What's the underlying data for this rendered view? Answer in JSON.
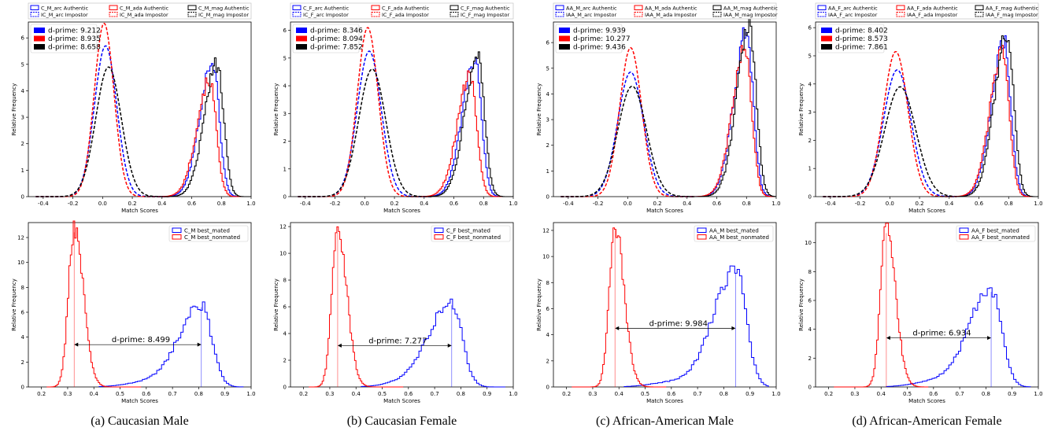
{
  "captions": [
    "(a) Caucasian Male",
    "(b) Caucasian Female",
    "(c) African-American Male",
    "(d) African-American Female"
  ],
  "colors": {
    "arc": "#0000ff",
    "ada": "#ff0000",
    "mag": "#000000",
    "mated": "#0000ff",
    "nonmated": "#ff0000"
  },
  "chart_data": [
    {
      "type": "line",
      "panel": "a-top",
      "xlabel": "Match Scores",
      "ylabel": "Relative Frequency",
      "xlim": [
        -0.5,
        1.0
      ],
      "ylim": [
        0,
        6.6
      ],
      "xticks": [
        "-0.4",
        "-0.2",
        "0.0",
        "0.2",
        "0.4",
        "0.6",
        "0.8",
        "1.0"
      ],
      "yticks": [
        "0",
        "1",
        "2",
        "3",
        "4",
        "5",
        "6"
      ],
      "legend": [
        "C_M_arc Authentic",
        "C_M_ada Authentic",
        "C_M_mag Authentic",
        "IC_M_arc Impostor",
        "IC_M_ada Impostor",
        "IC_M_mag Impostor"
      ],
      "dprime_labels": [
        "d-prime: 9.212",
        "d-prime: 8.935",
        "d-prime: 8.658"
      ],
      "series": [
        {
          "name": "C_M_arc Impostor",
          "kind": "impostor",
          "model": "arc",
          "mean": 0.02,
          "peak": 5.7
        },
        {
          "name": "C_M_ada Impostor",
          "kind": "impostor",
          "model": "ada",
          "mean": 0.01,
          "peak": 6.55
        },
        {
          "name": "C_M_mag Impostor",
          "kind": "impostor",
          "model": "mag",
          "mean": 0.04,
          "peak": 4.9
        },
        {
          "name": "C_M_arc Authentic",
          "kind": "authentic",
          "model": "arc",
          "mean": 0.74,
          "peak": 5.1
        },
        {
          "name": "C_M_ada Authentic",
          "kind": "authentic",
          "model": "ada",
          "mean": 0.72,
          "peak": 4.4
        },
        {
          "name": "C_M_mag Authentic",
          "kind": "authentic",
          "model": "mag",
          "mean": 0.77,
          "peak": 5.0
        }
      ]
    },
    {
      "type": "line",
      "panel": "b-top",
      "xlabel": "Match Scores",
      "ylabel": "Relative Frequency",
      "xlim": [
        -0.5,
        1.0
      ],
      "ylim": [
        0,
        6.3
      ],
      "xticks": [
        "-0.4",
        "-0.2",
        "0.0",
        "0.2",
        "0.4",
        "0.6",
        "0.8",
        "1.0"
      ],
      "yticks": [
        "0",
        "1",
        "2",
        "3",
        "4",
        "5",
        "6"
      ],
      "legend": [
        "C_F_arc Authentic",
        "C_F_ada Authentic",
        "C_F_mag Authentic",
        "IC_F_arc Impostor",
        "IC_F_ada Impostor",
        "IC_F_mag Impostor"
      ],
      "dprime_labels": [
        "d-prime: 8.346",
        "d-prime: 8.094",
        "d-prime: 7.852"
      ],
      "series": [
        {
          "name": "C_F_arc Impostor",
          "kind": "impostor",
          "model": "arc",
          "mean": 0.03,
          "peak": 5.25
        },
        {
          "name": "C_F_ada Impostor",
          "kind": "impostor",
          "model": "ada",
          "mean": 0.02,
          "peak": 6.1
        },
        {
          "name": "C_F_mag Impostor",
          "kind": "impostor",
          "model": "mag",
          "mean": 0.05,
          "peak": 4.6
        },
        {
          "name": "C_F_arc Authentic",
          "kind": "authentic",
          "model": "arc",
          "mean": 0.74,
          "peak": 4.9
        },
        {
          "name": "C_F_ada Authentic",
          "kind": "authentic",
          "model": "ada",
          "mean": 0.71,
          "peak": 4.4
        },
        {
          "name": "C_F_mag Authentic",
          "kind": "authentic",
          "model": "mag",
          "mean": 0.76,
          "peak": 5.2
        }
      ]
    },
    {
      "type": "line",
      "panel": "c-top",
      "xlabel": "Match Scores",
      "ylabel": "Relative Frequency",
      "xlim": [
        -0.5,
        1.0
      ],
      "ylim": [
        0,
        6.8
      ],
      "xticks": [
        "-0.4",
        "-0.2",
        "0.0",
        "0.2",
        "0.4",
        "0.6",
        "0.8",
        "1.0"
      ],
      "yticks": [
        "0",
        "1",
        "2",
        "3",
        "4",
        "5",
        "6"
      ],
      "legend": [
        "AA_M_arc Authentic",
        "AA_M_ada Authentic",
        "AA_M_mag Authentic",
        "IAA_M_arc Impostor",
        "IAA_M_ada Impostor",
        "IAA_M_mag Impostor"
      ],
      "dprime_labels": [
        "d-prime: 9.939",
        "d-prime: 10.277",
        "d-prime: 9.436"
      ],
      "series": [
        {
          "name": "AA_M_arc Impostor",
          "kind": "impostor",
          "model": "arc",
          "mean": 0.02,
          "peak": 4.85
        },
        {
          "name": "AA_M_ada Impostor",
          "kind": "impostor",
          "model": "ada",
          "mean": 0.02,
          "peak": 5.8
        },
        {
          "name": "AA_M_mag Impostor",
          "kind": "impostor",
          "model": "mag",
          "mean": 0.03,
          "peak": 4.3
        },
        {
          "name": "AA_M_arc Authentic",
          "kind": "authentic",
          "model": "arc",
          "mean": 0.8,
          "peak": 6.4
        },
        {
          "name": "AA_M_ada Authentic",
          "kind": "authentic",
          "model": "ada",
          "mean": 0.79,
          "peak": 5.8
        },
        {
          "name": "AA_M_mag Authentic",
          "kind": "authentic",
          "model": "mag",
          "mean": 0.82,
          "peak": 6.6
        }
      ]
    },
    {
      "type": "line",
      "panel": "d-top",
      "xlabel": "Match Scores",
      "ylabel": "Relative Frequency",
      "xlim": [
        -0.5,
        1.0
      ],
      "ylim": [
        0,
        6.2
      ],
      "xticks": [
        "-0.4",
        "-0.2",
        "0.0",
        "0.2",
        "0.4",
        "0.6",
        "0.8",
        "1.0"
      ],
      "yticks": [
        "0",
        "1",
        "2",
        "3",
        "4",
        "5",
        "6"
      ],
      "legend": [
        "AA_F_arc Authentic",
        "AA_F_ada Authentic",
        "AA_F_mag Authentic",
        "IAA_F_arc Impostor",
        "IAA_F_ada Impostor",
        "IAA_F_mag Impostor"
      ],
      "dprime_labels": [
        "d-prime: 8.402",
        "d-prime: 8.573",
        "d-prime: 7.861"
      ],
      "series": [
        {
          "name": "AA_F_arc Impostor",
          "kind": "impostor",
          "model": "arc",
          "mean": 0.05,
          "peak": 4.5
        },
        {
          "name": "AA_F_ada Impostor",
          "kind": "impostor",
          "model": "ada",
          "mean": 0.04,
          "peak": 5.15
        },
        {
          "name": "AA_F_mag Impostor",
          "kind": "impostor",
          "model": "mag",
          "mean": 0.07,
          "peak": 3.9
        },
        {
          "name": "AA_F_arc Authentic",
          "kind": "authentic",
          "model": "arc",
          "mean": 0.77,
          "peak": 5.5
        },
        {
          "name": "AA_F_ada Authentic",
          "kind": "authentic",
          "model": "ada",
          "mean": 0.76,
          "peak": 5.2
        },
        {
          "name": "AA_F_mag Authentic",
          "kind": "authentic",
          "model": "mag",
          "mean": 0.79,
          "peak": 5.8
        }
      ]
    },
    {
      "type": "line",
      "panel": "a-bottom",
      "xlabel": "Match Scores",
      "ylabel": "Relative Frequency",
      "xlim": [
        0.15,
        1.0
      ],
      "ylim": [
        0,
        13.2
      ],
      "xticks": [
        "0.2",
        "0.3",
        "0.4",
        "0.5",
        "0.6",
        "0.7",
        "0.8",
        "0.9",
        "1.0"
      ],
      "yticks": [
        "0",
        "2",
        "4",
        "6",
        "8",
        "10",
        "12"
      ],
      "legend": [
        "C_M best_mated",
        "C_M best_nonmated"
      ],
      "dprime_label": "d-prime: 8.499",
      "mated_mean": 0.81,
      "nonmated_mean": 0.325,
      "arrow_y": 3.4,
      "series": [
        {
          "name": "C_M best_mated",
          "kind": "mated",
          "mean": 0.81,
          "peak": 6.6
        },
        {
          "name": "C_M best_nonmated",
          "kind": "nonmated",
          "mean": 0.325,
          "peak": 12.8
        }
      ]
    },
    {
      "type": "line",
      "panel": "b-bottom",
      "xlabel": "Match Scores",
      "ylabel": "Relative Frequency",
      "xlim": [
        0.15,
        1.0
      ],
      "ylim": [
        0,
        12.3
      ],
      "xticks": [
        "0.2",
        "0.3",
        "0.4",
        "0.5",
        "0.6",
        "0.7",
        "0.8",
        "0.9",
        "1.0"
      ],
      "yticks": [
        "0",
        "2",
        "4",
        "6",
        "8",
        "10",
        "12"
      ],
      "legend": [
        "C_F best_mated",
        "C_F best_nonmated"
      ],
      "dprime_label": "d-prime: 7.277",
      "mated_mean": 0.765,
      "nonmated_mean": 0.33,
      "arrow_y": 3.1,
      "series": [
        {
          "name": "C_F best_mated",
          "kind": "mated",
          "mean": 0.765,
          "peak": 6.3
        },
        {
          "name": "C_F best_nonmated",
          "kind": "nonmated",
          "mean": 0.33,
          "peak": 11.9
        }
      ]
    },
    {
      "type": "line",
      "panel": "c-bottom",
      "xlabel": "Match Scores",
      "ylabel": "Relative Frequency",
      "xlim": [
        0.15,
        1.0
      ],
      "ylim": [
        0,
        12.6
      ],
      "xticks": [
        "0.2",
        "0.3",
        "0.4",
        "0.5",
        "0.6",
        "0.7",
        "0.8",
        "0.9",
        "1.0"
      ],
      "yticks": [
        "0",
        "2",
        "4",
        "6",
        "8",
        "10",
        "12"
      ],
      "legend": [
        "AA_M best_mated",
        "AA_M best_nonmated"
      ],
      "dprime_label": "d-prime: 9.984",
      "mated_mean": 0.845,
      "nonmated_mean": 0.385,
      "arrow_y": 4.5,
      "series": [
        {
          "name": "AA_M best_mated",
          "kind": "mated",
          "mean": 0.845,
          "peak": 9.0
        },
        {
          "name": "AA_M best_nonmated",
          "kind": "nonmated",
          "mean": 0.385,
          "peak": 12.4
        }
      ]
    },
    {
      "type": "line",
      "panel": "d-bottom",
      "xlabel": "Match Scores",
      "ylabel": "Relative Frequency",
      "xlim": [
        0.15,
        1.0
      ],
      "ylim": [
        0,
        11.4
      ],
      "xticks": [
        "0.2",
        "0.3",
        "0.4",
        "0.5",
        "0.6",
        "0.7",
        "0.8",
        "0.9",
        "1.0"
      ],
      "yticks": [
        "0",
        "2",
        "4",
        "6",
        "8",
        "10"
      ],
      "legend": [
        "AA_F best_mated",
        "AA_F best_nonmated"
      ],
      "dprime_label": "d-prime: 6.934",
      "mated_mean": 0.82,
      "nonmated_mean": 0.42,
      "arrow_y": 3.4,
      "series": [
        {
          "name": "AA_F best_mated",
          "kind": "mated",
          "mean": 0.82,
          "peak": 6.8
        },
        {
          "name": "AA_F best_nonmated",
          "kind": "nonmated",
          "mean": 0.42,
          "peak": 11.0
        }
      ]
    }
  ]
}
